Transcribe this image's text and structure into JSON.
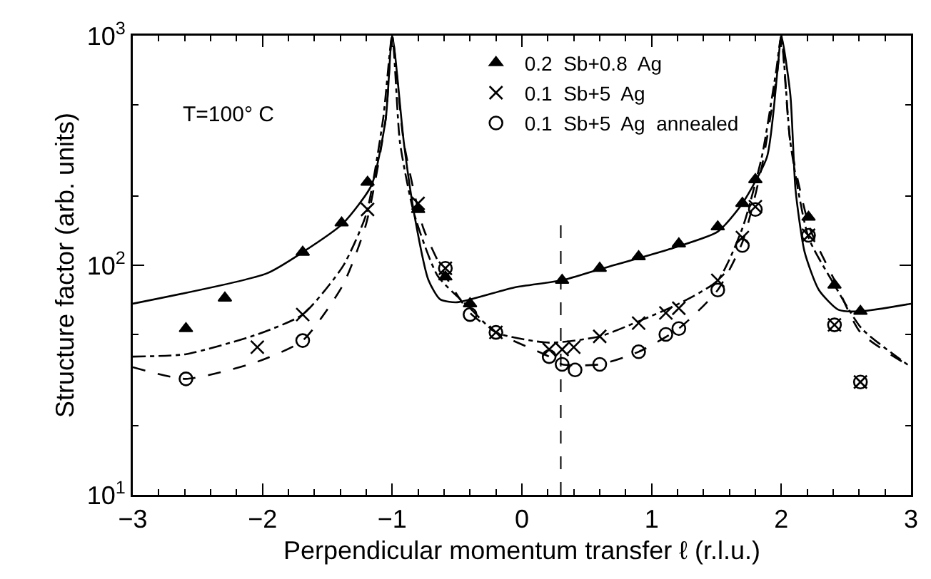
{
  "chart_data": {
    "type": "scatter",
    "xlabel": "Perpendicular momentum transfer ℓ (r.l.u.)",
    "ylabel": "Structure factor (arb. units)",
    "annotations": [
      "T=100° C"
    ],
    "log": "y",
    "grid": false,
    "legend": "top",
    "xlim": [
      -3,
      3
    ],
    "xticks": [
      {
        "value": -3,
        "label": "−3"
      },
      {
        "value": -2,
        "label": "−2"
      },
      {
        "value": -1,
        "label": "−1"
      },
      0,
      1,
      2,
      3
    ],
    "ylim": [
      10,
      1000
    ],
    "yticks": [
      {
        "value": 10,
        "label": "10$^{1}$"
      },
      {
        "value": 100,
        "label": "10$^{2}$"
      },
      {
        "value": 1000,
        "label": "10$^{3}$"
      }
    ],
    "ref_lines": [
      {
        "axis": "x",
        "value": 0.3,
        "line_style": "dashed",
        "color": "#000000"
      }
    ],
    "series": [
      {
        "name": "0.2  Sb+0.8  Ag",
        "marker": "triangle",
        "color": "#000000",
        "x": [
          -2.59,
          -2.29,
          -1.69,
          -1.39,
          -1.19,
          -0.8,
          -0.59,
          -0.4,
          0.31,
          0.6,
          0.9,
          1.21,
          1.51,
          1.7,
          1.8,
          2.21,
          2.41,
          2.61
        ],
        "values": [
          53,
          72,
          114,
          153,
          230,
          175,
          89,
          68,
          86,
          97,
          109,
          124,
          147,
          186,
          236,
          162,
          82,
          63
        ]
      },
      {
        "name": "0.1  Sb+5  Ag",
        "marker": "cross",
        "color": "#000000",
        "x": [
          -2.04,
          -1.69,
          -1.19,
          -0.8,
          -0.59,
          -0.2,
          0.21,
          0.31,
          0.4,
          0.6,
          0.9,
          1.11,
          1.21,
          1.51,
          1.7,
          1.8,
          2.21,
          2.41,
          2.61
        ],
        "values": [
          44,
          61,
          175,
          186,
          97,
          51,
          43,
          43,
          44,
          49,
          56,
          62,
          65,
          86,
          132,
          180,
          135,
          55,
          31
        ]
      },
      {
        "name": "0.1  Sb+5  Ag  annealed",
        "marker": "circle",
        "color": "#000000",
        "x": [
          -2.59,
          -1.69,
          -0.59,
          -0.4,
          -0.2,
          0.21,
          0.31,
          0.41,
          0.6,
          0.9,
          1.11,
          1.21,
          1.51,
          1.7,
          1.8,
          2.21,
          2.41,
          2.61
        ],
        "values": [
          32,
          47,
          97,
          61,
          51,
          40,
          37,
          35,
          37,
          42,
          50,
          53,
          78,
          122,
          175,
          135,
          55,
          31
        ]
      },
      {
        "type": "line",
        "marker": "none",
        "line_style": "solid",
        "color": "#000000",
        "x": [
          -3,
          -1.97,
          -1.69,
          -1.38,
          -1.16,
          -1.05,
          -1,
          -0.91,
          -0.83,
          -0.72,
          -0.63,
          -0.5,
          -0.06,
          0.31,
          0.6,
          1.19,
          1.51,
          1.7,
          1.89,
          1.97,
          2,
          2.07,
          2.11,
          2.18,
          2.29,
          2.44,
          2.61,
          3
        ],
        "values": [
          68,
          92,
          114,
          152,
          223,
          434,
          1000,
          342,
          167,
          86,
          71,
          69,
          80,
          86,
          96,
          120,
          140,
          186,
          297,
          700,
          1000,
          550,
          212,
          114,
          78,
          64,
          63,
          68
        ]
      },
      {
        "type": "line",
        "marker": "none",
        "line_style": "dashdot",
        "color": "#000000",
        "x": [
          -3,
          -2.59,
          -2.04,
          -1.69,
          -1.38,
          -1.2,
          -1.07,
          -1,
          -0.94,
          -0.83,
          -0.65,
          -0.4,
          -0.2,
          0.21,
          0.6,
          0.9,
          1.21,
          1.51,
          1.7,
          1.85,
          1.96,
          2,
          2.07,
          2.21,
          2.41,
          2.62,
          3
        ],
        "values": [
          40,
          41,
          50,
          61,
          99,
          167,
          434,
          1000,
          342,
          167,
          90,
          65,
          51,
          46,
          49,
          57,
          68,
          86,
          145,
          297,
          700,
          1000,
          342,
          132,
          82,
          53,
          36
        ]
      },
      {
        "type": "line",
        "marker": "none",
        "line_style": "dashed",
        "color": "#000000",
        "x": [
          -3,
          -2.59,
          -2.04,
          -1.69,
          -1.38,
          -1.2,
          -1.05,
          -1,
          -0.91,
          -0.76,
          -0.58,
          -0.4,
          -0.2,
          0.21,
          0.31,
          0.6,
          0.9,
          1.21,
          1.51,
          1.7,
          1.85,
          1.97,
          2,
          2.07,
          2.22,
          2.41,
          2.61,
          3
        ],
        "values": [
          36,
          32,
          38,
          47,
          82,
          152,
          434,
          1000,
          342,
          145,
          88,
          62,
          51,
          40,
          37,
          37,
          42,
          53,
          78,
          126,
          269,
          700,
          1000,
          342,
          145,
          86,
          51,
          36
        ]
      }
    ]
  }
}
